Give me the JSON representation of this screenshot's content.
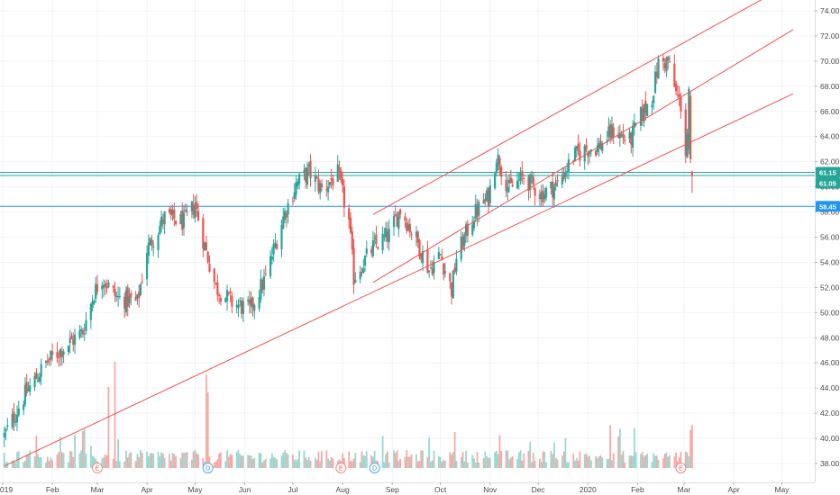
{
  "chart_data": {
    "type": "candlestick",
    "y_axis": {
      "ticks": [
        "74.00",
        "72.00",
        "70.00",
        "68.00",
        "66.00",
        "64.00",
        "62.00",
        "60.00",
        "58.00",
        "56.00",
        "54.00",
        "52.00",
        "50.00",
        "48.00",
        "46.00",
        "44.00",
        "42.00",
        "40.00",
        "38.00"
      ],
      "range": [
        36.5,
        75.5
      ]
    },
    "x_axis": {
      "ticks": [
        "019",
        "Feb",
        "Mar",
        "Apr",
        "May",
        "Jun",
        "Jul",
        "Aug",
        "Sep",
        "Oct",
        "Nov",
        "Dec",
        "2020",
        "Feb",
        "Mar",
        "Apr",
        "May"
      ]
    },
    "price_badges": [
      {
        "label": "61.15",
        "value": 61.15,
        "color": "#26a69a"
      },
      {
        "label": "61.05",
        "value": 61.05,
        "color": "#26a69a"
      },
      {
        "label": "58.45",
        "value": 58.45,
        "color": "#2196f3"
      }
    ],
    "horizontal_levels": [
      {
        "value": 61.15,
        "color": "#26a69a"
      },
      {
        "value": 60.9,
        "color": "#26a69a"
      },
      {
        "value": 58.45,
        "color": "#2196f3"
      }
    ],
    "trend_lines": [
      {
        "from": {
          "x": "2019-01-02",
          "y": 37.8
        },
        "to": {
          "x": "2020-05-08",
          "y": 67.4
        },
        "color": "#ef5350"
      },
      {
        "from": {
          "x": "2019-08-20",
          "y": 52.4
        },
        "to": {
          "x": "2020-05-08",
          "y": 72.5
        },
        "color": "#ef5350"
      },
      {
        "from": {
          "x": "2019-08-20",
          "y": 57.8
        },
        "to": {
          "x": "2020-04-20",
          "y": 75.0
        },
        "color": "#ef5350"
      }
    ],
    "event_markers": [
      {
        "label": "E",
        "date": "2019-03-01",
        "kind": "earnings"
      },
      {
        "label": "D",
        "date": "2019-05-09",
        "kind": "dividend"
      },
      {
        "label": "E",
        "date": "2019-07-31",
        "kind": "earnings"
      },
      {
        "label": "D",
        "date": "2019-08-21",
        "kind": "dividend"
      },
      {
        "label": "E",
        "date": "2020-02-28",
        "kind": "earnings"
      }
    ],
    "price_anchors": [
      [
        "2019-01-02",
        40.2
      ],
      [
        "2019-01-15",
        43.5
      ],
      [
        "2019-01-28",
        46.0
      ],
      [
        "2019-02-08",
        47.2
      ],
      [
        "2019-02-20",
        48.5
      ],
      [
        "2019-02-27",
        51.6
      ],
      [
        "2019-03-04",
        52.8
      ],
      [
        "2019-03-13",
        51.2
      ],
      [
        "2019-03-26",
        50.8
      ],
      [
        "2019-04-01",
        55.0
      ],
      [
        "2019-04-12",
        57.6
      ],
      [
        "2019-04-24",
        57.2
      ],
      [
        "2019-05-01",
        58.6
      ],
      [
        "2019-05-07",
        55.3
      ],
      [
        "2019-05-14",
        52.0
      ],
      [
        "2019-05-24",
        50.8
      ],
      [
        "2019-06-04",
        50.2
      ],
      [
        "2019-06-14",
        52.8
      ],
      [
        "2019-06-25",
        57.6
      ],
      [
        "2019-07-03",
        60.2
      ],
      [
        "2019-07-11",
        61.2
      ],
      [
        "2019-07-19",
        59.8
      ],
      [
        "2019-07-29",
        61.0
      ],
      [
        "2019-08-05",
        57.2
      ],
      [
        "2019-08-08",
        52.8
      ],
      [
        "2019-08-20",
        55.2
      ],
      [
        "2019-08-30",
        56.2
      ],
      [
        "2019-09-06",
        58.2
      ],
      [
        "2019-09-16",
        55.8
      ],
      [
        "2019-09-24",
        53.4
      ],
      [
        "2019-10-01",
        54.6
      ],
      [
        "2019-10-08",
        51.8
      ],
      [
        "2019-10-11",
        54.4
      ],
      [
        "2019-10-22",
        57.8
      ],
      [
        "2019-10-31",
        59.2
      ],
      [
        "2019-11-05",
        62.5
      ],
      [
        "2019-11-13",
        59.8
      ],
      [
        "2019-11-22",
        60.8
      ],
      [
        "2019-12-03",
        59.4
      ],
      [
        "2019-12-13",
        60.2
      ],
      [
        "2019-12-23",
        62.4
      ],
      [
        "2019-12-31",
        63.0
      ],
      [
        "2020-01-08",
        63.2
      ],
      [
        "2020-01-17",
        64.5
      ],
      [
        "2020-01-27",
        63.6
      ],
      [
        "2020-02-03",
        65.6
      ],
      [
        "2020-02-10",
        67.2
      ],
      [
        "2020-02-14",
        69.8
      ],
      [
        "2020-02-20",
        70.0
      ],
      [
        "2020-02-25",
        67.4
      ],
      [
        "2020-02-28",
        66.5
      ],
      [
        "2020-03-02",
        62.8
      ],
      [
        "2020-03-05",
        67.2
      ],
      [
        "2020-03-06",
        61.2
      ]
    ],
    "volume_baseline": 520,
    "up_color": "#26a69a",
    "down_color": "#ef5350",
    "grid": true
  }
}
